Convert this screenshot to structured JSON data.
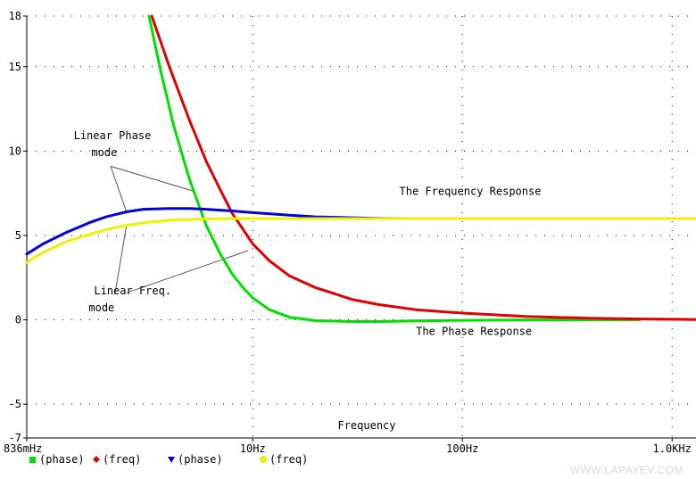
{
  "chart_data": {
    "type": "line",
    "xlabel": "Frequency",
    "x_scale": "log",
    "xlim": [
      0.836,
      1300
    ],
    "ylim": [
      -7,
      18
    ],
    "grid": "dotted",
    "x_ticks": [
      {
        "value": 0.836,
        "label": "836mHz"
      },
      {
        "value": 10,
        "label": "10Hz"
      },
      {
        "value": 100,
        "label": "100Hz"
      },
      {
        "value": 1000,
        "label": "1.0KHz"
      }
    ],
    "y_ticks": [
      {
        "value": 18,
        "label": "18"
      },
      {
        "value": 15,
        "label": "15"
      },
      {
        "value": 10,
        "label": "10"
      },
      {
        "value": 5,
        "label": "5"
      },
      {
        "value": 0,
        "label": "0"
      },
      {
        "value": -5,
        "label": "-5"
      },
      {
        "value": -7,
        "label": "-7"
      }
    ],
    "series": [
      {
        "name": "(phase)",
        "color": "#00e000",
        "marker": "square",
        "x": [
          3.2,
          3.6,
          4.2,
          5,
          6,
          7,
          8,
          9,
          10,
          12,
          15,
          20,
          30,
          40,
          60,
          100,
          200,
          400,
          700
        ],
        "y": [
          18,
          15,
          11.5,
          8.3,
          5.6,
          3.9,
          2.7,
          1.9,
          1.3,
          0.6,
          0.15,
          -0.05,
          -0.1,
          -0.1,
          -0.06,
          -0.03,
          0,
          0,
          0
        ]
      },
      {
        "name": "(freq)",
        "color": "#e00000",
        "marker": "diamond",
        "x": [
          3.3,
          4,
          5,
          6,
          7,
          8,
          10,
          12,
          15,
          20,
          30,
          40,
          60,
          100,
          200,
          400,
          700,
          1300
        ],
        "y": [
          18,
          15,
          11.8,
          9.4,
          7.7,
          6.3,
          4.5,
          3.5,
          2.6,
          1.9,
          1.2,
          0.9,
          0.6,
          0.4,
          0.2,
          0.1,
          0.05,
          0.02
        ]
      },
      {
        "name": "(phase)",
        "color": "#0000e0",
        "marker": "triangle-down",
        "x": [
          0.836,
          1,
          1.3,
          1.7,
          2,
          2.5,
          3,
          4,
          5,
          6,
          7,
          8,
          10,
          15,
          20,
          30,
          40,
          54
        ],
        "y": [
          3.9,
          4.5,
          5.2,
          5.8,
          6.1,
          6.4,
          6.55,
          6.6,
          6.6,
          6.55,
          6.5,
          6.45,
          6.35,
          6.2,
          6.1,
          6.05,
          6.02,
          6.0
        ]
      },
      {
        "name": "(freq)",
        "color": "#f0f000",
        "marker": "circle",
        "x": [
          0.836,
          1,
          1.3,
          1.7,
          2,
          2.5,
          3,
          4,
          5,
          6,
          8,
          10,
          15,
          20,
          30,
          60,
          100,
          300,
          1300
        ],
        "y": [
          3.4,
          4.0,
          4.65,
          5.1,
          5.35,
          5.6,
          5.75,
          5.9,
          5.95,
          5.98,
          6.0,
          6.0,
          6.0,
          6.0,
          6.0,
          6.0,
          6.0,
          6.0,
          6.0
        ]
      }
    ],
    "annotations": [
      {
        "text": "Linear Phase",
        "x": 1.4,
        "y": 10.7
      },
      {
        "text": "mode",
        "x": 1.7,
        "y": 9.7
      },
      {
        "text": "Linear Freq.",
        "x": 1.75,
        "y": 1.5
      },
      {
        "text": "mode",
        "x": 1.65,
        "y": 0.5
      },
      {
        "text": "The Frequency Response",
        "x": 50,
        "y": 7.4
      },
      {
        "text": "The Phase Response",
        "x": 60,
        "y": -0.9
      }
    ],
    "pointer_lines": [
      {
        "from": [
          2.1,
          9.1
        ],
        "to": [
          5.3,
          7.6
        ]
      },
      {
        "from": [
          2.1,
          9.1
        ],
        "to": [
          2.5,
          6.4
        ]
      },
      {
        "from": [
          2.5,
          1.6
        ],
        "to": [
          9.5,
          4.1
        ]
      },
      {
        "from": [
          2.2,
          1.5
        ],
        "to": [
          2.5,
          5.6
        ]
      }
    ]
  },
  "watermark": "WWW.LAPAYEV.COM"
}
